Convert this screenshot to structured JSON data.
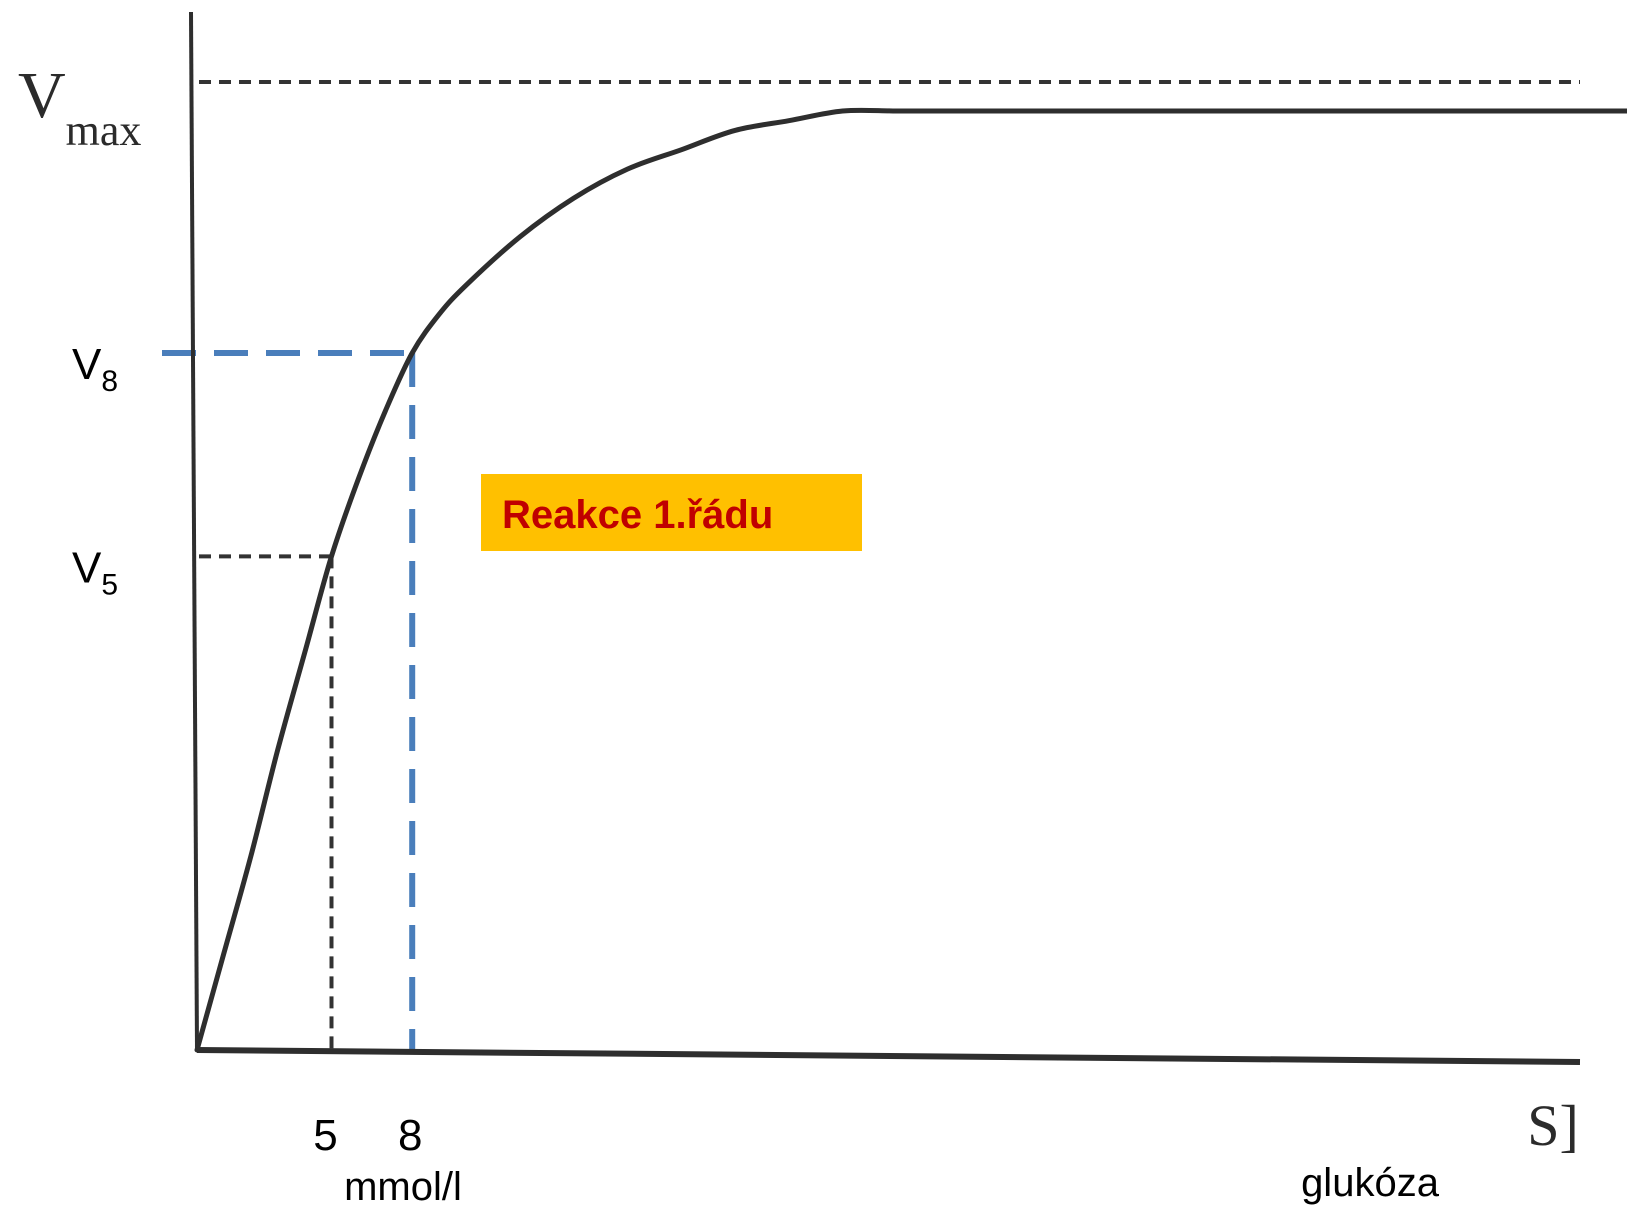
{
  "chart_data": {
    "type": "line",
    "title": "",
    "x_range": [
      0,
      36
    ],
    "y_range": [
      0,
      1
    ],
    "grid": false,
    "legend": "none",
    "series": [
      {
        "curve": "saturation",
        "x": [
          0,
          1,
          2,
          3,
          4,
          5,
          6,
          7,
          8,
          9,
          10,
          12,
          14,
          16,
          18,
          20,
          22,
          24,
          26,
          28,
          30,
          32,
          34,
          36
        ],
        "y": [
          0,
          0.1,
          0.2,
          0.31,
          0.41,
          0.51,
          0.59,
          0.66,
          0.72,
          0.76,
          0.79,
          0.84,
          0.88,
          0.91,
          0.93,
          0.95,
          0.96,
          0.97,
          0.97,
          0.97,
          0.97,
          0.97,
          0.97,
          0.97
        ]
      }
    ],
    "y_markers": [
      {
        "id": "vmax",
        "main": "V",
        "sub": "max",
        "y": 1.0,
        "style": "dotted-black"
      },
      {
        "id": "v8",
        "main": "V",
        "sub": "8",
        "y": 0.72,
        "style": "dashed-blue"
      },
      {
        "id": "v5",
        "main": "V",
        "sub": "5",
        "y": 0.51,
        "style": "dotted-black"
      }
    ],
    "x_markers": [
      {
        "id": "x5",
        "label": "5",
        "x": 5,
        "style": "dotted-black"
      },
      {
        "id": "x8",
        "label": "8",
        "x": 8,
        "style": "dashed-blue"
      }
    ],
    "x_unit_label": "mmol/l",
    "x_axis_symbol": "S]",
    "x_axis_name": "glukóza",
    "callout": {
      "text": "Reakce 1.řádu",
      "bg_color": "#ffc000",
      "text_color": "#c00000"
    },
    "colors": {
      "curve": "#2e2e2e",
      "axis": "#2e2e2e",
      "dotted_line": "#333333",
      "dashed_blue": "#4a7ebb"
    }
  }
}
